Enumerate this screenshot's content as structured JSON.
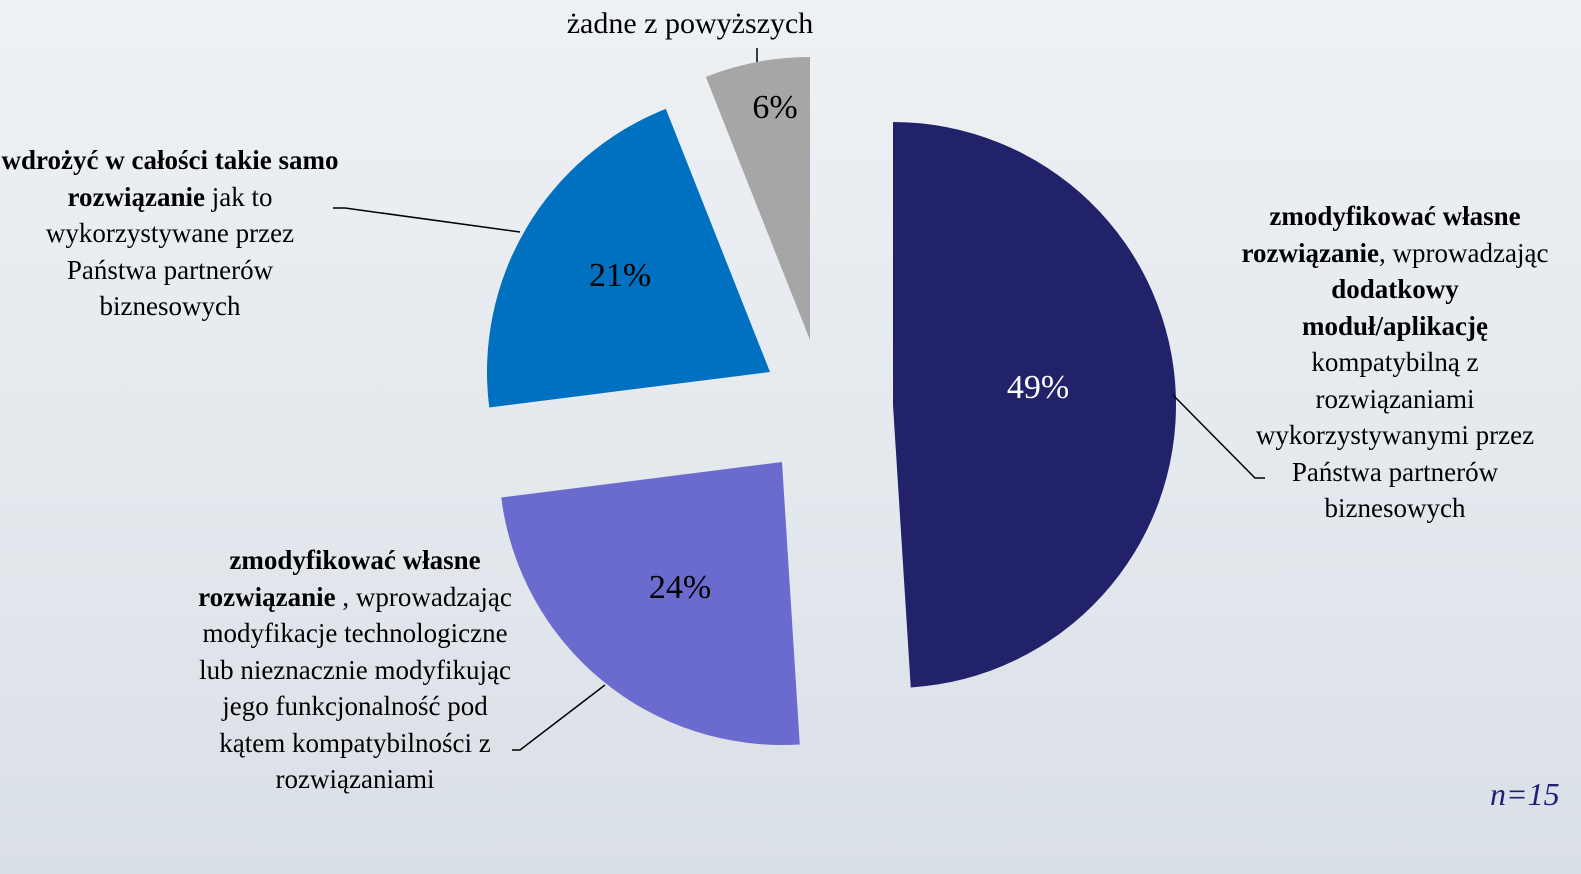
{
  "chart_data": {
    "type": "pie",
    "categories": [
      [
        {
          "text": "zmodyfikować własne rozwiązanie",
          "bold": true
        },
        {
          "text": ", wprowadzając ",
          "bold": false
        },
        {
          "text": "dodatkowy moduł/aplikację",
          "bold": true
        },
        {
          "text": " kompatybilną z rozwiązaniami wykorzystywanymi przez Państwa partnerów biznesowych",
          "bold": false
        }
      ],
      [
        {
          "text": "zmodyfikować własne rozwiązanie",
          "bold": true
        },
        {
          "text": " , wprowadzając modyfikacje technologiczne lub nieznacznie modyfikując jego funkcjonalność pod kątem kompatybilności z rozwiązaniami",
          "bold": false
        }
      ],
      [
        {
          "text": "wdrożyć w całości takie samo rozwiązanie",
          "bold": true
        },
        {
          "text": " jak to wykorzystywane przez Państwa partnerów biznesowych",
          "bold": false
        }
      ],
      [
        {
          "text": "żadne z powyższych",
          "bold": false
        }
      ]
    ],
    "values": [
      49,
      24,
      21,
      6
    ],
    "value_labels": [
      "49%",
      "24%",
      "21%",
      "6%"
    ],
    "colors": [
      "#22226a",
      "#6b6bcf",
      "#0070c0",
      "#a6a6a6"
    ],
    "value_label_colors": [
      "#ffffff",
      "#000000",
      "#000000",
      "#000000"
    ],
    "note": "n=15"
  }
}
